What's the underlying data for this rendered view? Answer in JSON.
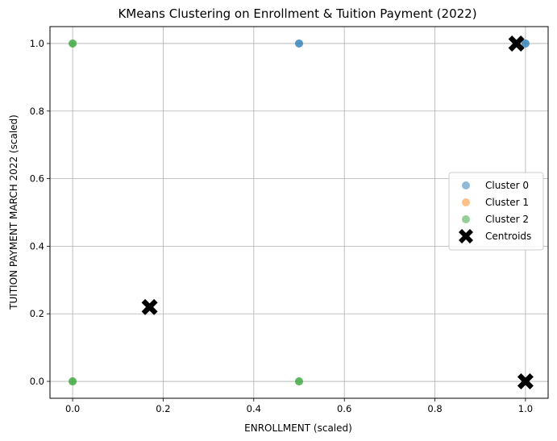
{
  "chart_data": {
    "type": "scatter",
    "title": "KMeans Clustering on Enrollment & Tuition Payment (2022)",
    "xlabel": "ENROLLMENT (scaled)",
    "ylabel": "TUITION PAYMENT MARCH 2022 (scaled)",
    "xlim": [
      -0.05,
      1.05
    ],
    "ylim": [
      -0.05,
      1.05
    ],
    "xticks": [
      "0.0",
      "0.2",
      "0.4",
      "0.6",
      "0.8",
      "1.0"
    ],
    "yticks": [
      "0.0",
      "0.2",
      "0.4",
      "0.6",
      "0.8",
      "1.0"
    ],
    "grid": true,
    "legend_position": "center-right",
    "series": [
      {
        "name": "Cluster 0",
        "color": "#1f77b4",
        "marker": "circle",
        "x": [
          0.5,
          1.0
        ],
        "y": [
          1.0,
          1.0
        ]
      },
      {
        "name": "Cluster 1",
        "color": "#ff7f0e",
        "marker": "circle",
        "x": [],
        "y": []
      },
      {
        "name": "Cluster 2",
        "color": "#2ca02c",
        "marker": "circle",
        "x": [
          0.0,
          0.0,
          0.5
        ],
        "y": [
          1.0,
          0.0,
          0.0
        ]
      },
      {
        "name": "Centroids",
        "color": "#000000",
        "marker": "x",
        "x": [
          0.98,
          0.17,
          1.0
        ],
        "y": [
          1.0,
          0.22,
          0.0
        ]
      }
    ]
  }
}
